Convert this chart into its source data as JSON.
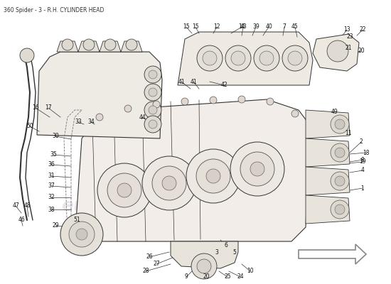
{
  "title": "360 Spider - 3 - R.H. CYLINDER HEAD",
  "title_fontsize": 5.5,
  "title_color": "#333333",
  "bg_color": "#ffffff",
  "label_fontsize": 5.5,
  "label_color": "#111111",
  "line_color": "#333333",
  "watermark1": "europarts",
  "watermark2": "europarts",
  "wm_color": "#d8c8d8",
  "wm_alpha": 0.5,
  "wm_fontsize": 18
}
